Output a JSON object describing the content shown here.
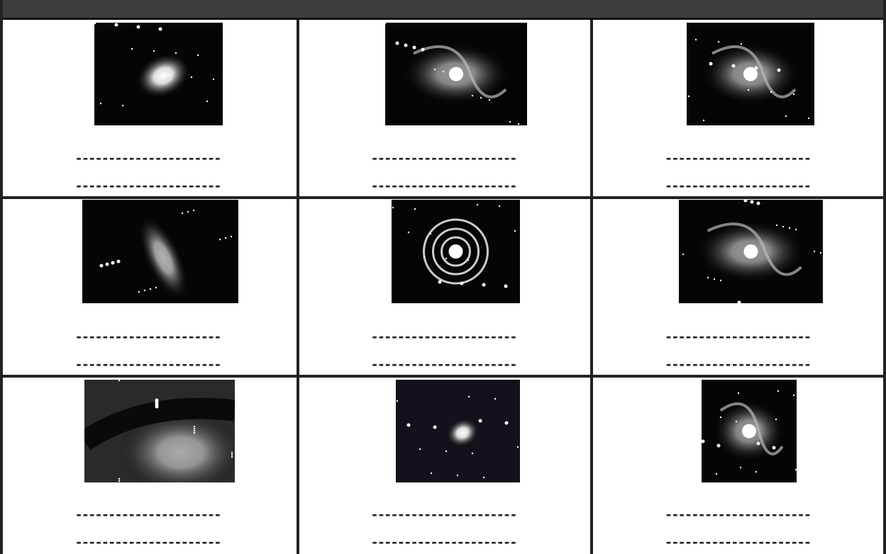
{
  "cells": [
    {
      "lines": [
        "----------------------",
        "----------------------"
      ]
    },
    {
      "lines": [
        "----------------------",
        "----------------------"
      ]
    },
    {
      "lines": [
        "----------------------",
        "----------------------"
      ]
    },
    {
      "lines": [
        "----------------------",
        "----------------------"
      ]
    },
    {
      "lines": [
        "----------------------",
        "----------------------"
      ]
    },
    {
      "lines": [
        "----------------------",
        "----------------------"
      ]
    },
    {
      "lines": [
        "----------------------",
        "----------------------"
      ]
    },
    {
      "lines": [
        "----------------------",
        "----------------------"
      ]
    },
    {
      "lines": [
        "----------------------",
        "----------------------"
      ]
    }
  ]
}
